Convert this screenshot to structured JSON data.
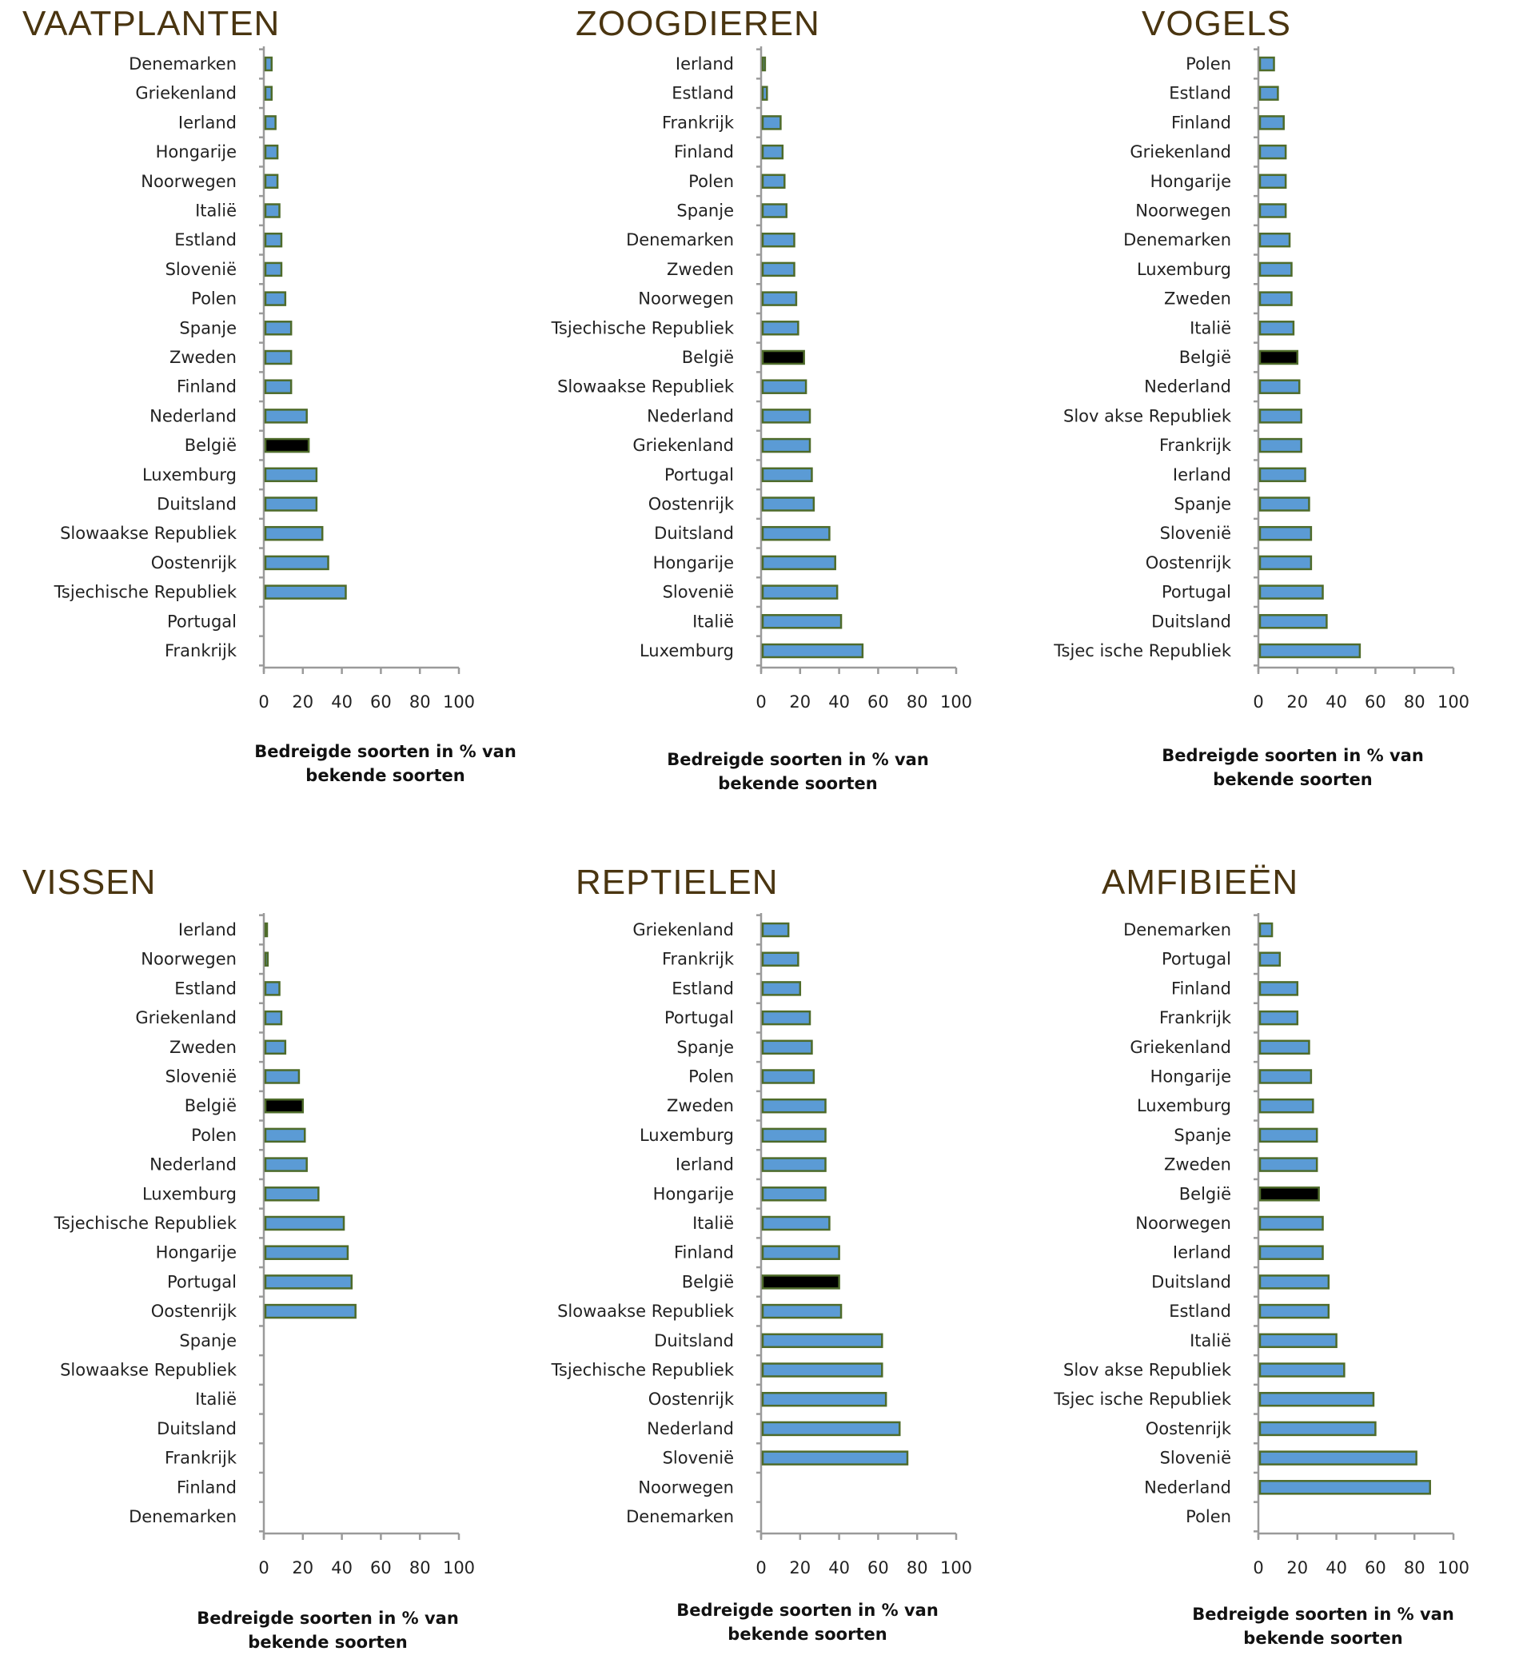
{
  "colors": {
    "bar": "#5b9bd5",
    "bar_stroke": "#4e6b2a",
    "highlight": "#000000",
    "title": "#4a3510",
    "axis": "#9a9a9a"
  },
  "highlight_category": "België",
  "chart_data": [
    {
      "type": "bar",
      "orientation": "horizontal",
      "title": "VAATPLANTEN",
      "xlabel": [
        "Bedreigde soorten in % van",
        "bekende soorten"
      ],
      "xlim": [
        0,
        100
      ],
      "xticks": [
        "0",
        "20",
        "40",
        "60",
        "80",
        "100"
      ],
      "categories": [
        "Denemarken",
        "Griekenland",
        "Ierland",
        "Hongarije",
        "Noorwegen",
        "Italië",
        "Estland",
        "Slovenië",
        "Polen",
        "Spanje",
        "Zweden",
        "Finland",
        "Nederland",
        "België",
        "Luxemburg",
        "Duitsland",
        "Slowaakse Republiek",
        "Oostenrijk",
        "Tsjechische Republiek",
        "Portugal",
        "Frankrijk"
      ],
      "values": [
        4,
        4,
        6,
        7,
        7,
        8,
        9,
        9,
        11,
        14,
        14,
        14,
        22,
        23,
        27,
        27,
        30,
        33,
        42,
        null,
        null
      ]
    },
    {
      "type": "bar",
      "orientation": "horizontal",
      "title": "ZOOGDIEREN",
      "xlabel": [
        "Bedreigde soorten in % van",
        "bekende soorten"
      ],
      "xlim": [
        0,
        100
      ],
      "xticks": [
        "0",
        "20",
        "40",
        "60",
        "80",
        "100"
      ],
      "categories": [
        "Ierland",
        "Estland",
        "Frankrijk",
        "Finland",
        "Polen",
        "Spanje",
        "Denemarken",
        "Zweden",
        "Noorwegen",
        "Tsjechische Republiek",
        "België",
        "Slowaakse Republiek",
        "Nederland",
        "Griekenland",
        "Portugal",
        "Oostenrijk",
        "Duitsland",
        "Hongarije",
        "Slovenië",
        "Italië",
        "Luxemburg"
      ],
      "values": [
        2,
        3,
        10,
        11,
        12,
        13,
        17,
        17,
        18,
        19,
        22,
        23,
        25,
        25,
        26,
        27,
        35,
        38,
        39,
        41,
        52
      ]
    },
    {
      "type": "bar",
      "orientation": "horizontal",
      "title": "VOGELS",
      "xlabel": [
        "Bedreigde soorten in % van",
        "bekende soorten"
      ],
      "xlim": [
        0,
        100
      ],
      "xticks": [
        "0",
        "20",
        "40",
        "60",
        "80",
        "100"
      ],
      "categories": [
        "Polen",
        "Estland",
        "Finland",
        "Griekenland",
        "Hongarije",
        "Noorwegen",
        "Denemarken",
        "Luxemburg",
        "Zweden",
        "Italië",
        "België",
        "Nederland",
        "Slov akse Republiek",
        "Frankrijk",
        "Ierland",
        "Spanje",
        "Slovenië",
        "Oostenrijk",
        "Portugal",
        "Duitsland",
        "Tsjec ische Republiek"
      ],
      "values": [
        8,
        10,
        13,
        14,
        14,
        14,
        16,
        17,
        17,
        18,
        20,
        21,
        22,
        22,
        24,
        26,
        27,
        27,
        33,
        35,
        52
      ]
    },
    {
      "type": "bar",
      "orientation": "horizontal",
      "title": "VISSEN",
      "xlabel": [
        "Bedreigde soorten in % van",
        "bekende soorten"
      ],
      "xlim": [
        0,
        100
      ],
      "xticks": [
        "0",
        "20",
        "40",
        "60",
        "80",
        "100"
      ],
      "categories": [
        "Ierland",
        "Noorwegen",
        "Estland",
        "Griekenland",
        "Zweden",
        "Slovenië",
        "België",
        "Polen",
        "Nederland",
        "Luxemburg",
        "Tsjechische Republiek",
        "Hongarije",
        "Portugal",
        "Oostenrijk",
        "Spanje",
        "Slowaakse Republiek",
        "Italië",
        "Duitsland",
        "Frankrijk",
        "Finland",
        "Denemarken"
      ],
      "values": [
        1,
        2,
        8,
        9,
        11,
        18,
        20,
        21,
        22,
        28,
        41,
        43,
        45,
        47,
        null,
        null,
        null,
        null,
        null,
        null,
        null
      ]
    },
    {
      "type": "bar",
      "orientation": "horizontal",
      "title": "REPTIELEN",
      "xlabel": [
        "Bedreigde soorten in % van",
        "bekende soorten"
      ],
      "xlim": [
        0,
        100
      ],
      "xticks": [
        "0",
        "20",
        "40",
        "60",
        "80",
        "100"
      ],
      "categories": [
        "Griekenland",
        "Frankrijk",
        "Estland",
        "Portugal",
        "Spanje",
        "Polen",
        "Zweden",
        "Luxemburg",
        "Ierland",
        "Hongarije",
        "Italië",
        "Finland",
        "België",
        "Slowaakse Republiek",
        "Duitsland",
        "Tsjechische Republiek",
        "Oostenrijk",
        "Nederland",
        "Slovenië",
        "Noorwegen",
        "Denemarken"
      ],
      "values": [
        14,
        19,
        20,
        25,
        26,
        27,
        33,
        33,
        33,
        33,
        35,
        40,
        40,
        41,
        62,
        62,
        64,
        71,
        75,
        null,
        null
      ]
    },
    {
      "type": "bar",
      "orientation": "horizontal",
      "title": "AMFIBIEËN",
      "xlabel": [
        "Bedreigde soorten in % van",
        "bekende soorten"
      ],
      "xlim": [
        0,
        100
      ],
      "xticks": [
        "0",
        "20",
        "40",
        "60",
        "80",
        "100"
      ],
      "categories": [
        "Denemarken",
        "Portugal",
        "Finland",
        "Frankrijk",
        "Griekenland",
        "Hongarije",
        "Luxemburg",
        "Spanje",
        "Zweden",
        "België",
        "Noorwegen",
        "Ierland",
        "Duitsland",
        "Estland",
        "Italië",
        "Slov akse Republiek",
        "Tsjec ische Republiek",
        "Oostenrijk",
        "Slovenië",
        "Nederland",
        "Polen"
      ],
      "values": [
        7,
        11,
        20,
        20,
        26,
        27,
        28,
        30,
        30,
        31,
        33,
        33,
        36,
        36,
        40,
        44,
        59,
        60,
        81,
        88,
        null
      ]
    }
  ]
}
